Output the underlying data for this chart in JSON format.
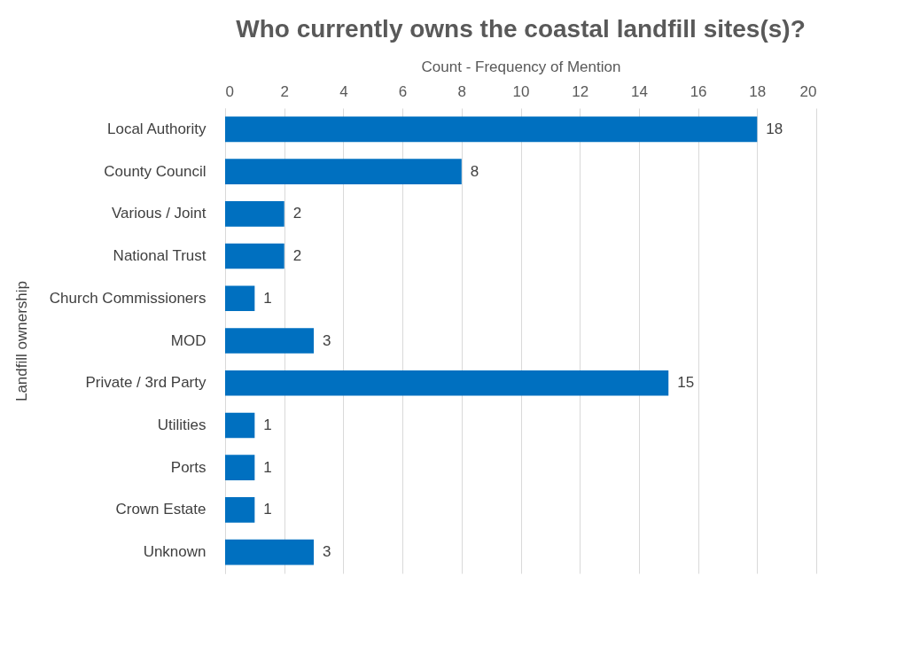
{
  "chart_data": {
    "type": "bar",
    "orientation": "horizontal",
    "title": "Who currently owns the coastal landfill sites(s)?",
    "xlabel": "Count - Frequency of Mention",
    "ylabel": "Landfill ownership",
    "categories": [
      "Local Authority",
      "County Council",
      "Various / Joint",
      "National Trust",
      "Church Commissioners",
      "MOD",
      "Private / 3rd Party",
      "Utilities",
      "Ports",
      "Crown Estate",
      "Unknown"
    ],
    "values": [
      18,
      8,
      2,
      2,
      1,
      3,
      15,
      1,
      1,
      1,
      3
    ],
    "color": "#0070c0",
    "xlim": [
      0,
      20
    ],
    "xticks": [
      0,
      2,
      4,
      6,
      8,
      10,
      12,
      14,
      16,
      18,
      20
    ],
    "grid": "x",
    "data_labels": true
  }
}
